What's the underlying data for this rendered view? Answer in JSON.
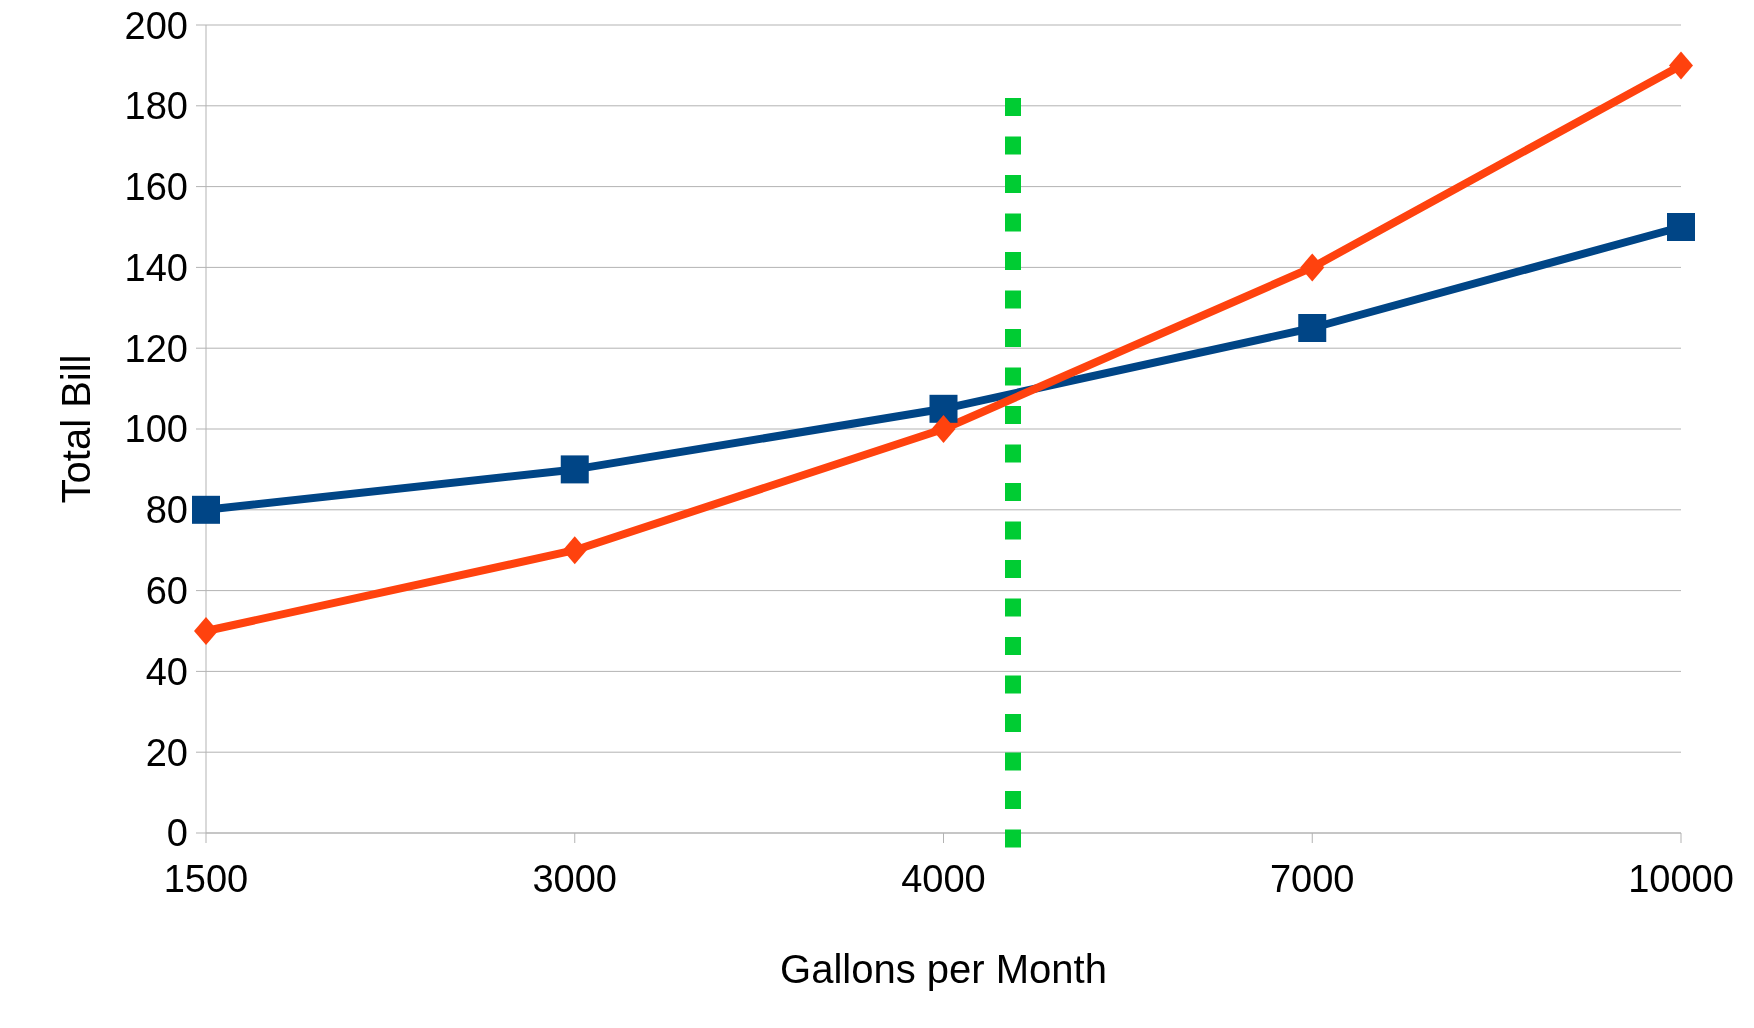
{
  "chart_data": {
    "type": "line",
    "xlabel": "Gallons per Month",
    "ylabel": "Total Bill",
    "categories": [
      "1500",
      "3000",
      "4000",
      "7000",
      "10000"
    ],
    "series": [
      {
        "color": "#004586",
        "marker": "square",
        "values": [
          80,
          90,
          105,
          125,
          150
        ]
      },
      {
        "color": "#ff420e",
        "marker": "diamond",
        "values": [
          50,
          70,
          100,
          140,
          190
        ]
      }
    ],
    "ylim": [
      0,
      200
    ],
    "yticks": [
      0,
      20,
      40,
      60,
      80,
      100,
      120,
      140,
      160,
      180,
      200
    ],
    "grid": "y"
  }
}
